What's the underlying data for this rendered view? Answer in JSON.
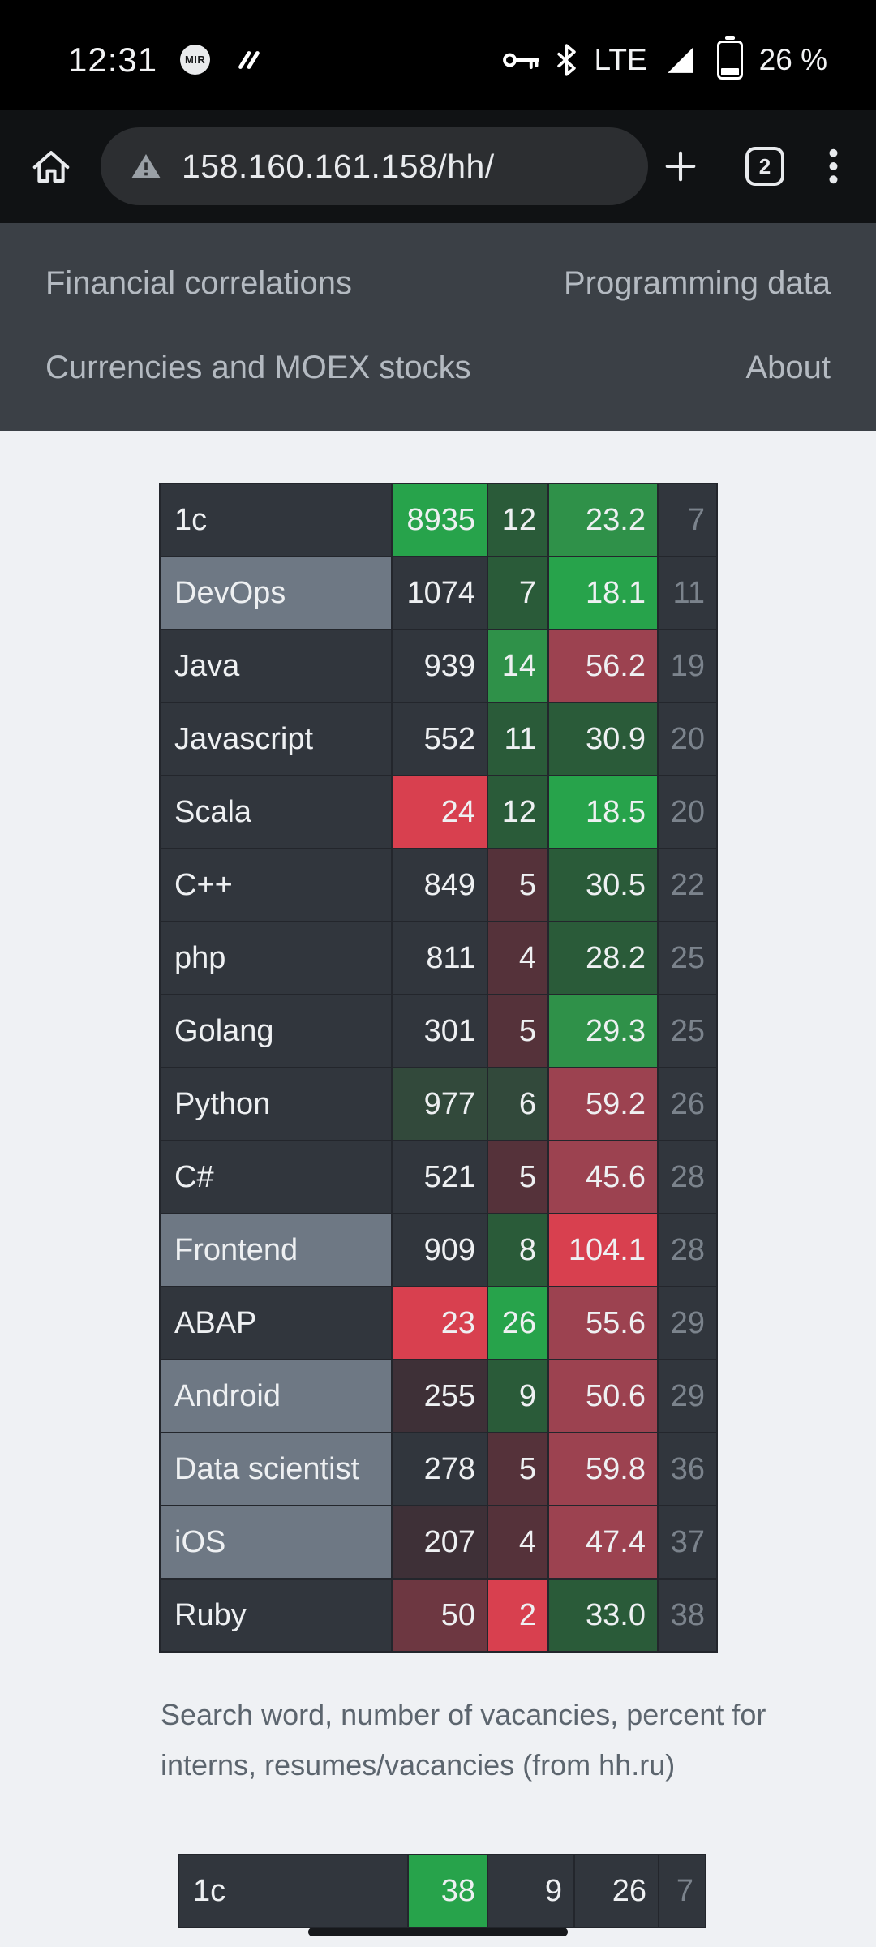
{
  "palette": {
    "plain": "#31363d",
    "name-light": "#6e7884",
    "green": "#27a34b",
    "green-mid": "#2f9149",
    "green-dark": "#2a5b39",
    "green-dim": "#32493b",
    "red": "#d8404f",
    "red-mid": "#9c4250",
    "red-soft": "#6d3741",
    "red-dark": "#55323a",
    "red-dim": "#3e3037",
    "grid": "#23262c",
    "muted-text": "#7b838c"
  },
  "status_bar": {
    "time": "12:31",
    "mir_label": "MIR",
    "network_type": "LTE",
    "battery_percent": "26 %"
  },
  "browser": {
    "url": "158.160.161.158/hh/",
    "tab_count": "2"
  },
  "nav": {
    "financial": "Financial correlations",
    "programming": "Programming data",
    "currencies": "Currencies and MOEX stocks",
    "about": "About"
  },
  "caption": "Search word, number of vacancies, percent for interns, resumes/vacancies (from hh.ru)",
  "main_table": {
    "rows": [
      {
        "name": "1c",
        "name_color": "plain",
        "cells": [
          {
            "value": "8935",
            "color": "green"
          },
          {
            "value": "12",
            "color": "green-dark"
          },
          {
            "value": "23.2",
            "color": "green-mid"
          },
          {
            "value": "7",
            "color": "plain",
            "muted": true
          }
        ]
      },
      {
        "name": "DevOps",
        "name_color": "name-light",
        "cells": [
          {
            "value": "1074",
            "color": "plain"
          },
          {
            "value": "7",
            "color": "green-dark"
          },
          {
            "value": "18.1",
            "color": "green"
          },
          {
            "value": "11",
            "color": "plain",
            "muted": true
          }
        ]
      },
      {
        "name": "Java",
        "name_color": "plain",
        "cells": [
          {
            "value": "939",
            "color": "plain"
          },
          {
            "value": "14",
            "color": "green-mid"
          },
          {
            "value": "56.2",
            "color": "red-mid"
          },
          {
            "value": "19",
            "color": "plain",
            "muted": true
          }
        ]
      },
      {
        "name": "Javascript",
        "name_color": "plain",
        "cells": [
          {
            "value": "552",
            "color": "plain"
          },
          {
            "value": "11",
            "color": "green-dark"
          },
          {
            "value": "30.9",
            "color": "green-dark"
          },
          {
            "value": "20",
            "color": "plain",
            "muted": true
          }
        ]
      },
      {
        "name": "Scala",
        "name_color": "plain",
        "cells": [
          {
            "value": "24",
            "color": "red"
          },
          {
            "value": "12",
            "color": "green-dark"
          },
          {
            "value": "18.5",
            "color": "green"
          },
          {
            "value": "20",
            "color": "plain",
            "muted": true
          }
        ]
      },
      {
        "name": "C++",
        "name_color": "plain",
        "cells": [
          {
            "value": "849",
            "color": "plain"
          },
          {
            "value": "5",
            "color": "red-dark"
          },
          {
            "value": "30.5",
            "color": "green-dark"
          },
          {
            "value": "22",
            "color": "plain",
            "muted": true
          }
        ]
      },
      {
        "name": "php",
        "name_color": "plain",
        "cells": [
          {
            "value": "811",
            "color": "plain"
          },
          {
            "value": "4",
            "color": "red-dark"
          },
          {
            "value": "28.2",
            "color": "green-dark"
          },
          {
            "value": "25",
            "color": "plain",
            "muted": true
          }
        ]
      },
      {
        "name": "Golang",
        "name_color": "plain",
        "cells": [
          {
            "value": "301",
            "color": "plain"
          },
          {
            "value": "5",
            "color": "red-dark"
          },
          {
            "value": "29.3",
            "color": "green-mid"
          },
          {
            "value": "25",
            "color": "plain",
            "muted": true
          }
        ]
      },
      {
        "name": "Python",
        "name_color": "plain",
        "cells": [
          {
            "value": "977",
            "color": "green-dim"
          },
          {
            "value": "6",
            "color": "green-dim"
          },
          {
            "value": "59.2",
            "color": "red-mid"
          },
          {
            "value": "26",
            "color": "plain",
            "muted": true
          }
        ]
      },
      {
        "name": "C#",
        "name_color": "plain",
        "cells": [
          {
            "value": "521",
            "color": "plain"
          },
          {
            "value": "5",
            "color": "red-dark"
          },
          {
            "value": "45.6",
            "color": "red-mid"
          },
          {
            "value": "28",
            "color": "plain",
            "muted": true
          }
        ]
      },
      {
        "name": "Frontend",
        "name_color": "name-light",
        "cells": [
          {
            "value": "909",
            "color": "plain"
          },
          {
            "value": "8",
            "color": "green-dark"
          },
          {
            "value": "104.1",
            "color": "red"
          },
          {
            "value": "28",
            "color": "plain",
            "muted": true
          }
        ]
      },
      {
        "name": "ABAP",
        "name_color": "plain",
        "cells": [
          {
            "value": "23",
            "color": "red"
          },
          {
            "value": "26",
            "color": "green"
          },
          {
            "value": "55.6",
            "color": "red-mid"
          },
          {
            "value": "29",
            "color": "plain",
            "muted": true
          }
        ]
      },
      {
        "name": "Android",
        "name_color": "name-light",
        "cells": [
          {
            "value": "255",
            "color": "red-dim"
          },
          {
            "value": "9",
            "color": "green-dark"
          },
          {
            "value": "50.6",
            "color": "red-mid"
          },
          {
            "value": "29",
            "color": "plain",
            "muted": true
          }
        ]
      },
      {
        "name": "Data scientist",
        "name_color": "name-light",
        "cells": [
          {
            "value": "278",
            "color": "plain"
          },
          {
            "value": "5",
            "color": "red-dark"
          },
          {
            "value": "59.8",
            "color": "red-mid"
          },
          {
            "value": "36",
            "color": "plain",
            "muted": true
          }
        ]
      },
      {
        "name": "iOS",
        "name_color": "name-light",
        "cells": [
          {
            "value": "207",
            "color": "red-dim"
          },
          {
            "value": "4",
            "color": "red-dark"
          },
          {
            "value": "47.4",
            "color": "red-mid"
          },
          {
            "value": "37",
            "color": "plain",
            "muted": true
          }
        ]
      },
      {
        "name": "Ruby",
        "name_color": "plain",
        "cells": [
          {
            "value": "50",
            "color": "red-soft"
          },
          {
            "value": "2",
            "color": "red"
          },
          {
            "value": "33.0",
            "color": "green-dark"
          },
          {
            "value": "38",
            "color": "plain",
            "muted": true
          }
        ]
      }
    ]
  },
  "secondary_table": {
    "rows": [
      {
        "name": "1c",
        "name_color": "plain",
        "cells": [
          {
            "value": "38",
            "color": "green"
          },
          {
            "value": "9",
            "color": "plain"
          },
          {
            "value": "26",
            "color": "plain"
          },
          {
            "value": "7",
            "color": "plain",
            "muted": true
          }
        ]
      }
    ]
  }
}
